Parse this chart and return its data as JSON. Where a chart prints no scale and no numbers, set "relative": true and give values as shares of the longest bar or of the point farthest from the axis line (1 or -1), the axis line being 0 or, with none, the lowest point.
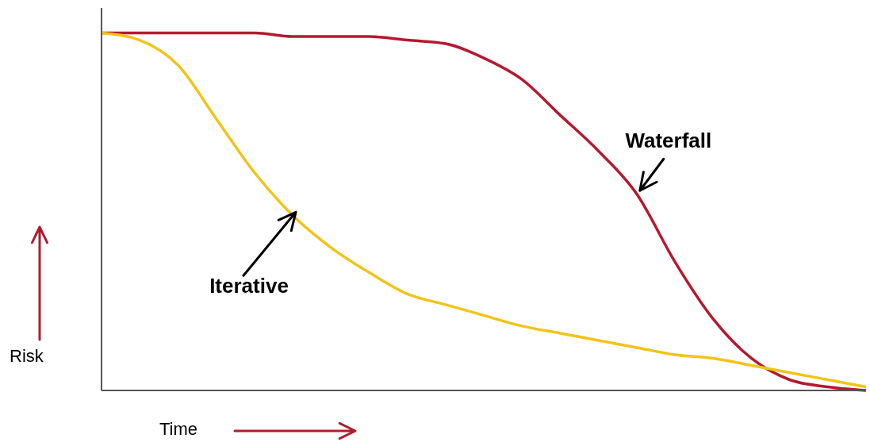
{
  "chart_data": {
    "type": "line",
    "relative": true,
    "xlabel": "Time",
    "ylabel": "Risk",
    "categories": [
      null,
      null,
      null,
      null,
      null,
      null,
      null,
      null,
      null,
      null,
      null,
      null,
      null,
      null,
      null,
      null,
      null,
      null,
      null,
      null,
      null
    ],
    "series": [
      {
        "name": "Waterfall",
        "color": "#b5192f",
        "values": [
          1,
          1,
          1,
          1,
          1,
          0.99,
          0.99,
          0.99,
          0.98,
          0.97,
          0.93,
          0.87,
          0.77,
          0.67,
          0.55,
          0.36,
          0.2,
          0.09,
          0.03,
          0.01,
          0
        ]
      },
      {
        "name": "Iterative",
        "color": "#f0c419",
        "values": [
          1,
          0.98,
          0.91,
          0.76,
          0.61,
          0.49,
          0.4,
          0.33,
          0.27,
          0.24,
          0.21,
          0.18,
          0.16,
          0.14,
          0.12,
          0.1,
          0.09,
          0.07,
          0.05,
          0.03,
          0.01
        ]
      }
    ]
  }
}
